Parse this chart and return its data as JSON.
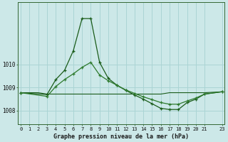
{
  "title": "Graphe pression niveau de la mer (hPa)",
  "background_color": "#cce8e8",
  "grid_color": "#aad4d4",
  "line_color_dark": "#1a5c1a",
  "line_color_med": "#2d7a2d",
  "xlim": [
    -0.3,
    23.3
  ],
  "ylim": [
    1007.4,
    1012.7
  ],
  "yticks": [
    1008,
    1009,
    1010
  ],
  "xtick_positions": [
    0,
    1,
    2,
    3,
    4,
    5,
    6,
    7,
    8,
    9,
    10,
    11,
    12,
    13,
    14,
    15,
    16,
    17,
    18,
    19,
    20,
    21,
    23
  ],
  "xtick_labels": [
    "0",
    "1",
    "2",
    "3",
    "4",
    "5",
    "6",
    "7",
    "8",
    "9",
    "10",
    "11",
    "12",
    "13",
    "14",
    "15",
    "16",
    "17",
    "18",
    "19",
    "20",
    "21",
    "23"
  ],
  "series_flat_x": [
    0,
    1,
    2,
    3,
    4,
    5,
    6,
    7,
    8,
    9,
    10,
    11,
    12,
    13,
    14,
    15,
    16,
    17,
    18,
    19,
    20,
    21,
    23
  ],
  "series_flat_y": [
    1008.78,
    1008.78,
    1008.78,
    1008.72,
    1008.72,
    1008.72,
    1008.72,
    1008.72,
    1008.72,
    1008.72,
    1008.72,
    1008.72,
    1008.72,
    1008.72,
    1008.72,
    1008.72,
    1008.72,
    1008.78,
    1008.78,
    1008.78,
    1008.78,
    1008.78,
    1008.82
  ],
  "series_main_x": [
    0,
    3,
    4,
    5,
    6,
    7,
    8,
    9,
    10,
    11,
    12,
    13,
    14,
    15,
    16,
    17,
    18,
    19,
    20,
    21,
    23
  ],
  "series_main_y": [
    1008.78,
    1008.7,
    1009.35,
    1009.75,
    1010.6,
    1012.0,
    1012.0,
    1010.1,
    1009.4,
    1009.1,
    1008.88,
    1008.68,
    1008.5,
    1008.3,
    1008.1,
    1008.05,
    1008.05,
    1008.35,
    1008.5,
    1008.72,
    1008.82
  ],
  "series_smooth_x": [
    0,
    3,
    4,
    5,
    6,
    7,
    8,
    9,
    10,
    11,
    12,
    13,
    14,
    15,
    16,
    17,
    18,
    19,
    20,
    21,
    23
  ],
  "series_smooth_y": [
    1008.78,
    1008.62,
    1009.05,
    1009.35,
    1009.6,
    1009.88,
    1010.1,
    1009.55,
    1009.3,
    1009.1,
    1008.9,
    1008.75,
    1008.6,
    1008.48,
    1008.35,
    1008.28,
    1008.28,
    1008.42,
    1008.55,
    1008.72,
    1008.82
  ]
}
